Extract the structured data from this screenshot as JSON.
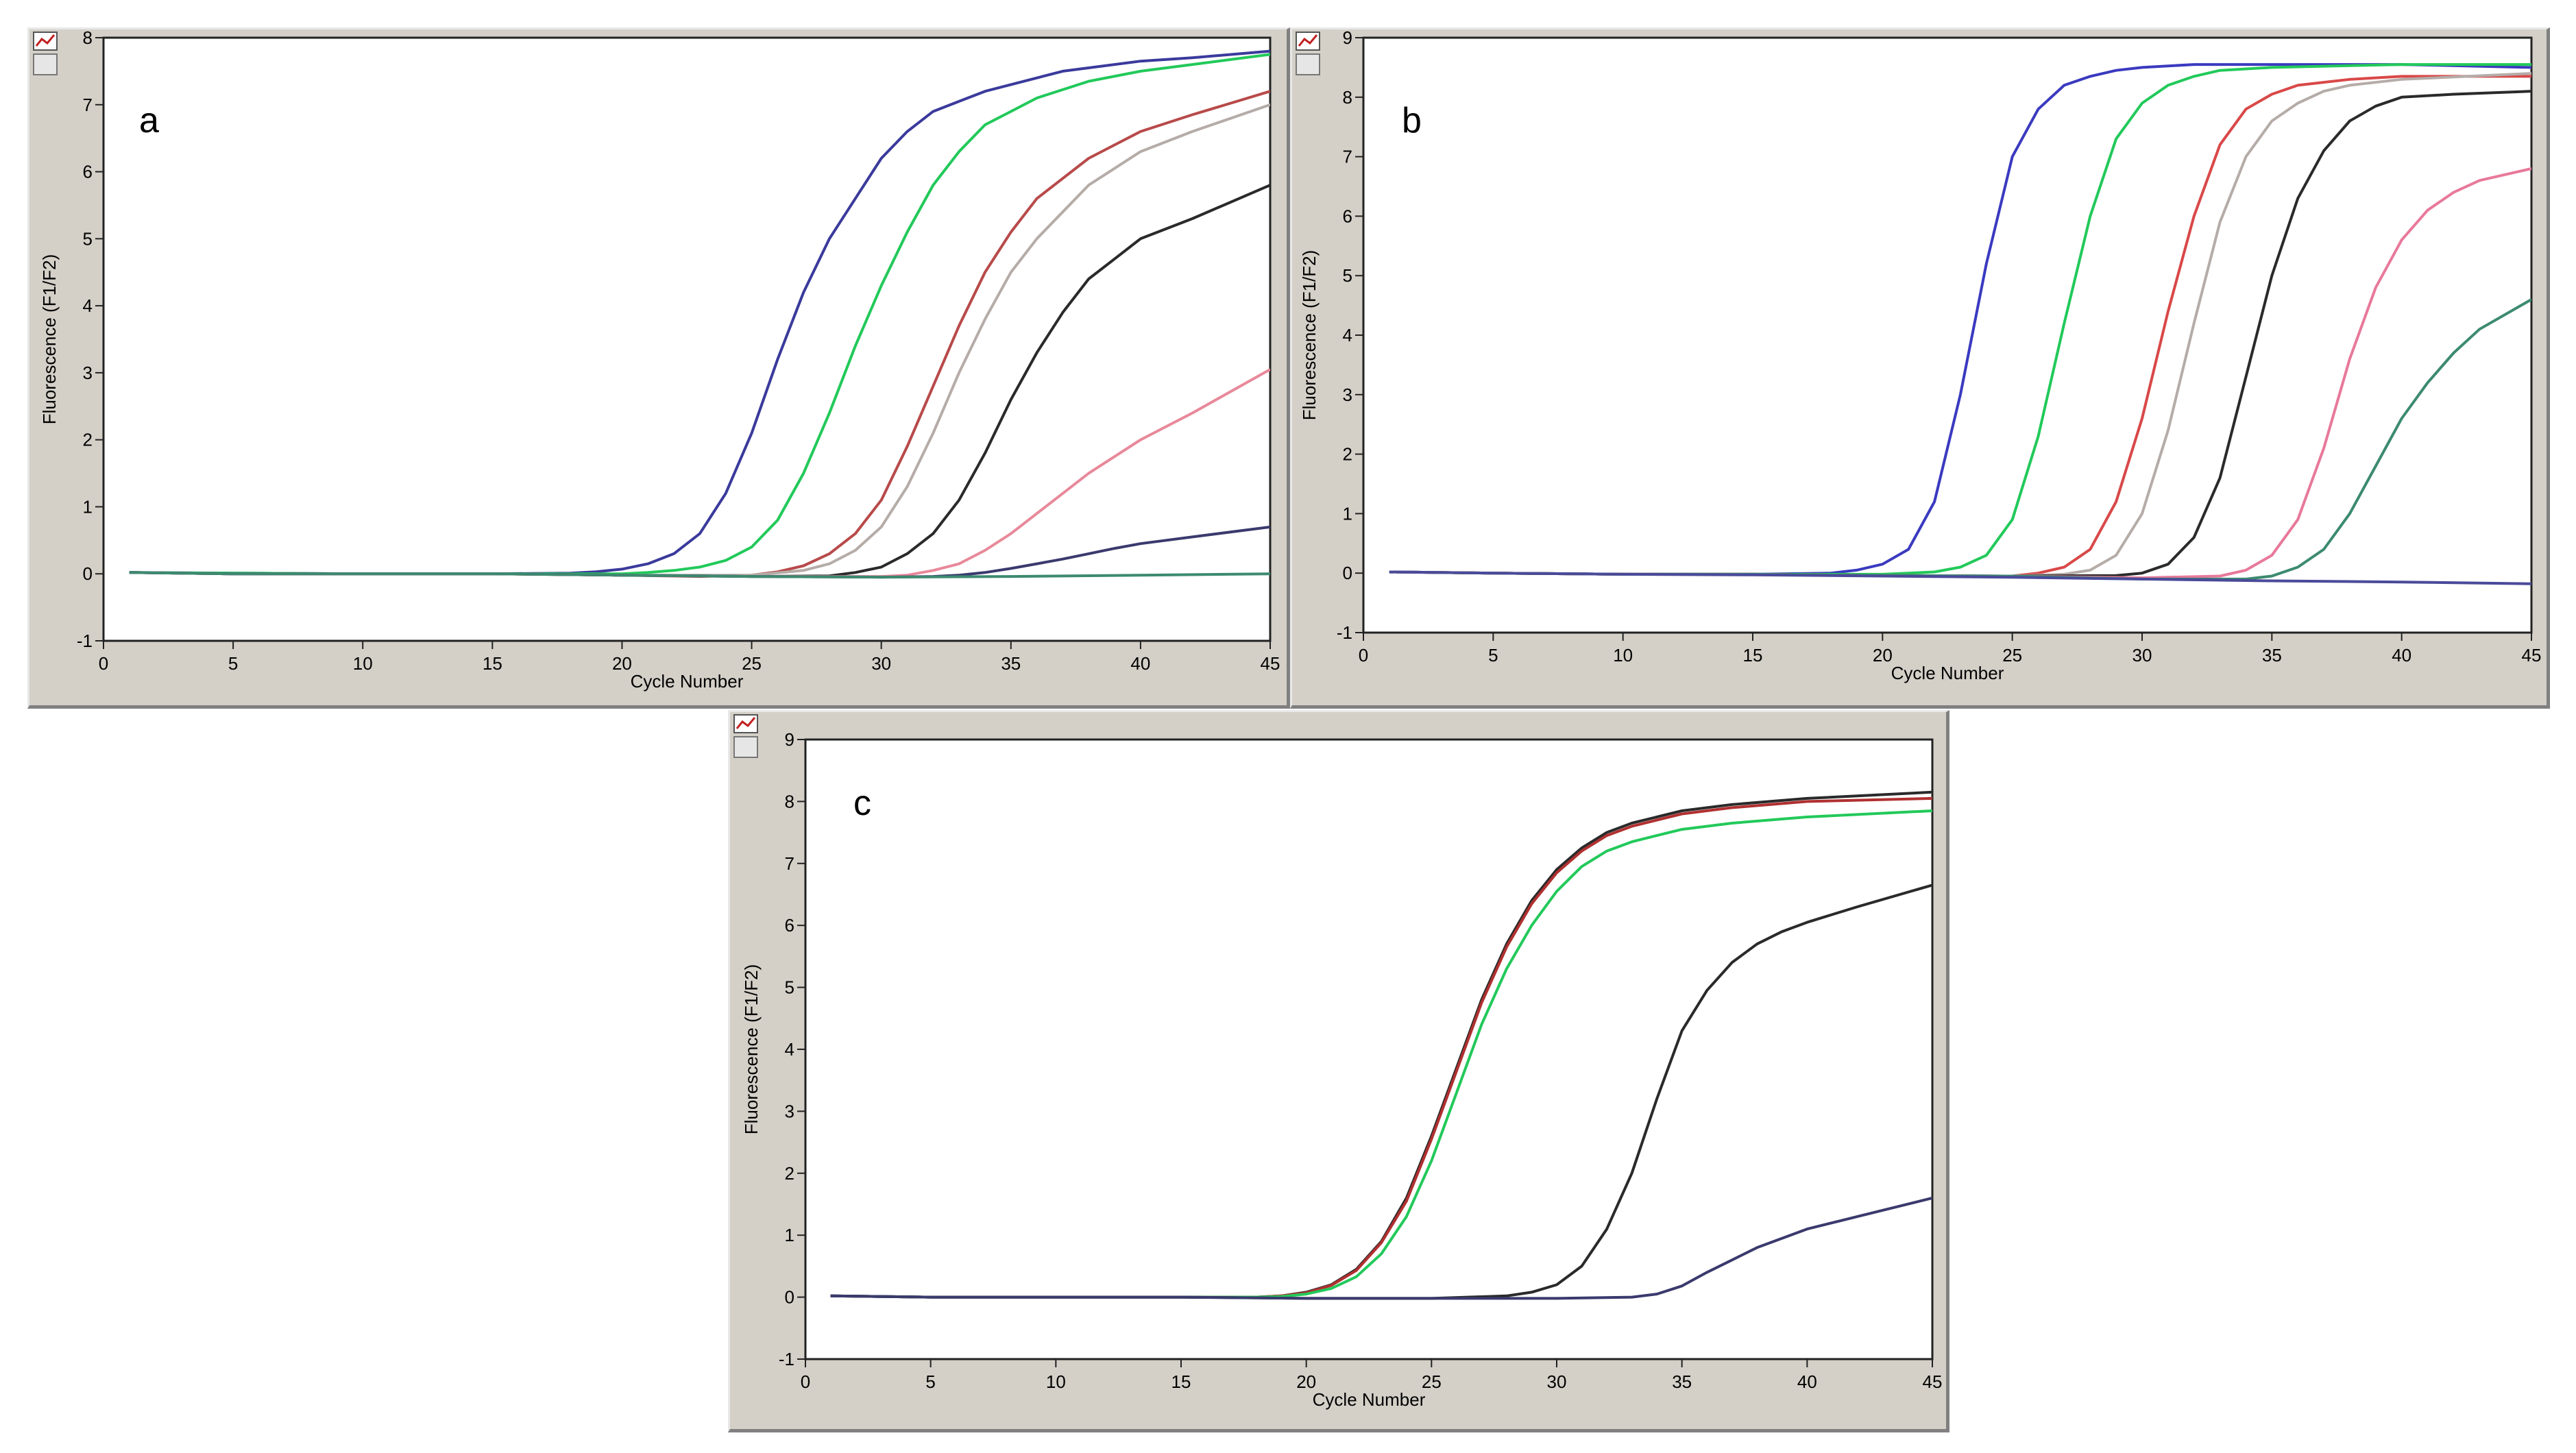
{
  "chart_data": [
    {
      "type": "line",
      "panel_label": "a",
      "xlabel": "Cycle Number",
      "ylabel": "Fluorescence (F1/F2)",
      "xlim": [
        0,
        45
      ],
      "ylim": [
        -1,
        8
      ],
      "xticks": [
        0,
        5,
        10,
        15,
        20,
        25,
        30,
        35,
        40,
        45
      ],
      "yticks": [
        -1,
        0,
        1,
        2,
        3,
        4,
        5,
        6,
        7,
        8
      ],
      "series": [
        {
          "color": "#3a3a9c",
          "x": [
            1,
            5,
            10,
            15,
            18,
            19,
            20,
            21,
            22,
            23,
            24,
            25,
            26,
            27,
            28,
            29,
            30,
            31,
            32,
            33,
            34,
            35,
            36,
            37,
            38,
            40,
            42,
            45
          ],
          "y": [
            0.02,
            0.01,
            0,
            0,
            0.01,
            0.03,
            0.07,
            0.15,
            0.3,
            0.6,
            1.2,
            2.1,
            3.2,
            4.2,
            5.0,
            5.6,
            6.2,
            6.6,
            6.9,
            7.05,
            7.2,
            7.3,
            7.4,
            7.5,
            7.55,
            7.65,
            7.7,
            7.8
          ]
        },
        {
          "color": "#22c95a",
          "x": [
            1,
            5,
            10,
            15,
            20,
            21,
            22,
            23,
            24,
            25,
            26,
            27,
            28,
            29,
            30,
            31,
            32,
            33,
            34,
            35,
            36,
            38,
            40,
            42,
            45
          ],
          "y": [
            0.02,
            0.01,
            0,
            0,
            0,
            0.02,
            0.05,
            0.1,
            0.2,
            0.4,
            0.8,
            1.5,
            2.4,
            3.4,
            4.3,
            5.1,
            5.8,
            6.3,
            6.7,
            6.9,
            7.1,
            7.35,
            7.5,
            7.6,
            7.75
          ]
        },
        {
          "color": "#b84a4a",
          "x": [
            1,
            5,
            10,
            15,
            20,
            23,
            25,
            26,
            27,
            28,
            29,
            30,
            31,
            32,
            33,
            34,
            35,
            36,
            37,
            38,
            40,
            42,
            45
          ],
          "y": [
            0.02,
            0,
            0,
            0,
            -0.02,
            -0.04,
            -0.02,
            0.03,
            0.12,
            0.3,
            0.6,
            1.1,
            1.9,
            2.8,
            3.7,
            4.5,
            5.1,
            5.6,
            5.9,
            6.2,
            6.6,
            6.85,
            7.2
          ]
        },
        {
          "color": "#b5aca8",
          "x": [
            1,
            5,
            10,
            15,
            20,
            25,
            27,
            28,
            29,
            30,
            31,
            32,
            33,
            34,
            35,
            36,
            37,
            38,
            40,
            42,
            45
          ],
          "y": [
            0.02,
            0,
            0,
            0,
            -0.02,
            -0.02,
            0.05,
            0.15,
            0.35,
            0.7,
            1.3,
            2.1,
            3.0,
            3.8,
            4.5,
            5.0,
            5.4,
            5.8,
            6.3,
            6.6,
            7.0
          ]
        },
        {
          "color": "#2a2a2a",
          "x": [
            1,
            5,
            10,
            15,
            20,
            25,
            28,
            29,
            30,
            31,
            32,
            33,
            34,
            35,
            36,
            37,
            38,
            39,
            40,
            42,
            45
          ],
          "y": [
            0.02,
            0,
            0,
            0,
            -0.02,
            -0.04,
            -0.03,
            0.02,
            0.1,
            0.3,
            0.6,
            1.1,
            1.8,
            2.6,
            3.3,
            3.9,
            4.4,
            4.7,
            5.0,
            5.3,
            5.8
          ]
        },
        {
          "color": "#e8899a",
          "x": [
            1,
            5,
            10,
            15,
            20,
            25,
            30,
            31,
            32,
            33,
            34,
            35,
            36,
            37,
            38,
            39,
            40,
            42,
            45
          ],
          "y": [
            0.02,
            0,
            0,
            0,
            -0.02,
            -0.04,
            -0.04,
            -0.02,
            0.05,
            0.15,
            0.35,
            0.6,
            0.9,
            1.2,
            1.5,
            1.75,
            2.0,
            2.4,
            3.05
          ]
        },
        {
          "color": "#3a3a6e",
          "x": [
            1,
            5,
            10,
            15,
            20,
            25,
            30,
            32,
            33,
            34,
            35,
            36,
            37,
            38,
            39,
            40,
            42,
            45
          ],
          "y": [
            0.02,
            0,
            0,
            0,
            -0.02,
            -0.04,
            -0.05,
            -0.04,
            -0.02,
            0.02,
            0.08,
            0.15,
            0.22,
            0.3,
            0.38,
            0.45,
            0.55,
            0.7
          ]
        },
        {
          "color": "#3c8a70",
          "x": [
            1,
            5,
            10,
            15,
            20,
            25,
            30,
            35,
            40,
            45
          ],
          "y": [
            0.02,
            0,
            0,
            0,
            -0.02,
            -0.04,
            -0.05,
            -0.04,
            -0.02,
            0.0
          ]
        }
      ]
    },
    {
      "type": "line",
      "panel_label": "b",
      "xlabel": "Cycle Number",
      "ylabel": "Fluorescence (F1/F2)",
      "xlim": [
        0,
        45
      ],
      "ylim": [
        -1,
        9
      ],
      "xticks": [
        0,
        5,
        10,
        15,
        20,
        25,
        30,
        35,
        40,
        45
      ],
      "yticks": [
        -1,
        0,
        1,
        2,
        3,
        4,
        5,
        6,
        7,
        8,
        9
      ],
      "series": [
        {
          "color": "#3a3ac0",
          "x": [
            1,
            5,
            10,
            15,
            18,
            19,
            20,
            21,
            22,
            23,
            24,
            25,
            26,
            27,
            28,
            29,
            30,
            32,
            35,
            40,
            45
          ],
          "y": [
            0.02,
            0,
            -0.02,
            -0.02,
            0,
            0.05,
            0.15,
            0.4,
            1.2,
            3.0,
            5.2,
            7.0,
            7.8,
            8.2,
            8.35,
            8.45,
            8.5,
            8.55,
            8.55,
            8.55,
            8.5
          ]
        },
        {
          "color": "#22c95a",
          "x": [
            1,
            5,
            10,
            15,
            20,
            22,
            23,
            24,
            25,
            26,
            27,
            28,
            29,
            30,
            31,
            32,
            33,
            35,
            40,
            45
          ],
          "y": [
            0.02,
            0,
            -0.02,
            -0.02,
            -0.02,
            0.02,
            0.1,
            0.3,
            0.9,
            2.3,
            4.2,
            6.0,
            7.3,
            7.9,
            8.2,
            8.35,
            8.45,
            8.5,
            8.55,
            8.55
          ]
        },
        {
          "color": "#d94848",
          "x": [
            1,
            5,
            10,
            15,
            20,
            25,
            26,
            27,
            28,
            29,
            30,
            31,
            32,
            33,
            34,
            35,
            36,
            38,
            40,
            45
          ],
          "y": [
            0.02,
            0,
            -0.02,
            -0.02,
            -0.04,
            -0.05,
            0.0,
            0.1,
            0.4,
            1.2,
            2.6,
            4.4,
            6.0,
            7.2,
            7.8,
            8.05,
            8.2,
            8.3,
            8.35,
            8.35
          ]
        },
        {
          "color": "#b5aca8",
          "x": [
            1,
            5,
            10,
            15,
            20,
            25,
            27,
            28,
            29,
            30,
            31,
            32,
            33,
            34,
            35,
            36,
            37,
            38,
            40,
            45
          ],
          "y": [
            0.02,
            0,
            -0.02,
            -0.02,
            -0.04,
            -0.05,
            -0.02,
            0.05,
            0.3,
            1.0,
            2.4,
            4.2,
            5.9,
            7.0,
            7.6,
            7.9,
            8.1,
            8.2,
            8.3,
            8.4
          ]
        },
        {
          "color": "#2a2a2a",
          "x": [
            1,
            5,
            10,
            15,
            20,
            25,
            29,
            30,
            31,
            32,
            33,
            34,
            35,
            36,
            37,
            38,
            39,
            40,
            42,
            45
          ],
          "y": [
            0.02,
            0,
            -0.02,
            -0.02,
            -0.04,
            -0.05,
            -0.04,
            0.0,
            0.15,
            0.6,
            1.6,
            3.3,
            5.0,
            6.3,
            7.1,
            7.6,
            7.85,
            8.0,
            8.05,
            8.1
          ]
        },
        {
          "color": "#e8799a",
          "x": [
            1,
            5,
            10,
            15,
            20,
            25,
            30,
            33,
            34,
            35,
            36,
            37,
            38,
            39,
            40,
            41,
            42,
            43,
            45
          ],
          "y": [
            0.02,
            0,
            -0.02,
            -0.02,
            -0.04,
            -0.05,
            -0.08,
            -0.05,
            0.05,
            0.3,
            0.9,
            2.1,
            3.6,
            4.8,
            5.6,
            6.1,
            6.4,
            6.6,
            6.8
          ]
        },
        {
          "color": "#3c8a70",
          "x": [
            1,
            5,
            10,
            15,
            20,
            25,
            30,
            34,
            35,
            36,
            37,
            38,
            39,
            40,
            41,
            42,
            43,
            45
          ],
          "y": [
            0.02,
            0,
            -0.02,
            -0.02,
            -0.04,
            -0.05,
            -0.1,
            -0.1,
            -0.05,
            0.1,
            0.4,
            1.0,
            1.8,
            2.6,
            3.2,
            3.7,
            4.1,
            4.6
          ]
        },
        {
          "color": "#4a4a9a",
          "x": [
            1,
            5,
            10,
            15,
            20,
            25,
            30,
            35,
            40,
            45
          ],
          "y": [
            0.02,
            0,
            -0.02,
            -0.03,
            -0.05,
            -0.07,
            -0.1,
            -0.13,
            -0.15,
            -0.18
          ]
        }
      ]
    },
    {
      "type": "line",
      "panel_label": "c",
      "xlabel": "Cycle Number",
      "ylabel": "Fluorescence (F1/F2)",
      "xlim": [
        0,
        45
      ],
      "ylim": [
        -1,
        9
      ],
      "xticks": [
        0,
        5,
        10,
        15,
        20,
        25,
        30,
        35,
        40,
        45
      ],
      "yticks": [
        -1,
        0,
        1,
        2,
        3,
        4,
        5,
        6,
        7,
        8,
        9
      ],
      "series": [
        {
          "color": "#2a2a2a",
          "x": [
            1,
            5,
            10,
            15,
            18,
            19,
            20,
            21,
            22,
            23,
            24,
            25,
            26,
            27,
            28,
            29,
            30,
            31,
            32,
            33,
            34,
            35,
            37,
            40,
            45
          ],
          "y": [
            0.02,
            0,
            0,
            0,
            0,
            0.02,
            0.08,
            0.2,
            0.45,
            0.9,
            1.6,
            2.6,
            3.7,
            4.8,
            5.7,
            6.4,
            6.9,
            7.25,
            7.5,
            7.65,
            7.75,
            7.85,
            7.95,
            8.05,
            8.15
          ]
        },
        {
          "color": "#b03030",
          "x": [
            1,
            5,
            10,
            15,
            18,
            19,
            20,
            21,
            22,
            23,
            24,
            25,
            26,
            27,
            28,
            29,
            30,
            31,
            32,
            33,
            34,
            35,
            37,
            40,
            45
          ],
          "y": [
            0.02,
            0,
            0,
            0,
            0,
            0.02,
            0.07,
            0.19,
            0.43,
            0.88,
            1.55,
            2.55,
            3.65,
            4.75,
            5.65,
            6.35,
            6.85,
            7.2,
            7.45,
            7.6,
            7.7,
            7.8,
            7.9,
            8.0,
            8.05
          ]
        },
        {
          "color": "#22c95a",
          "x": [
            1,
            5,
            10,
            15,
            18,
            19,
            20,
            21,
            22,
            23,
            24,
            25,
            26,
            27,
            28,
            29,
            30,
            31,
            32,
            33,
            34,
            35,
            37,
            40,
            45
          ],
          "y": [
            0.02,
            0,
            0,
            0,
            0,
            0.01,
            0.05,
            0.14,
            0.33,
            0.7,
            1.3,
            2.2,
            3.3,
            4.4,
            5.3,
            6.0,
            6.55,
            6.95,
            7.2,
            7.35,
            7.45,
            7.55,
            7.65,
            7.75,
            7.85
          ]
        },
        {
          "color": "#2a2a2a",
          "x": [
            1,
            5,
            10,
            15,
            20,
            25,
            28,
            29,
            30,
            31,
            32,
            33,
            34,
            35,
            36,
            37,
            38,
            39,
            40,
            42,
            45
          ],
          "y": [
            0.02,
            0,
            0,
            0,
            -0.02,
            -0.02,
            0.02,
            0.08,
            0.2,
            0.5,
            1.1,
            2.0,
            3.2,
            4.3,
            4.95,
            5.4,
            5.7,
            5.9,
            6.05,
            6.3,
            6.65
          ]
        },
        {
          "color": "#3a3a6e",
          "x": [
            1,
            5,
            10,
            15,
            20,
            25,
            30,
            33,
            34,
            35,
            36,
            37,
            38,
            39,
            40,
            42,
            45
          ],
          "y": [
            0.02,
            0,
            0,
            0,
            -0.02,
            -0.02,
            -0.02,
            0.0,
            0.05,
            0.18,
            0.4,
            0.6,
            0.8,
            0.95,
            1.1,
            1.3,
            1.6
          ]
        }
      ]
    }
  ],
  "ui": {
    "panel_labels": [
      "a",
      "b",
      "c"
    ]
  }
}
